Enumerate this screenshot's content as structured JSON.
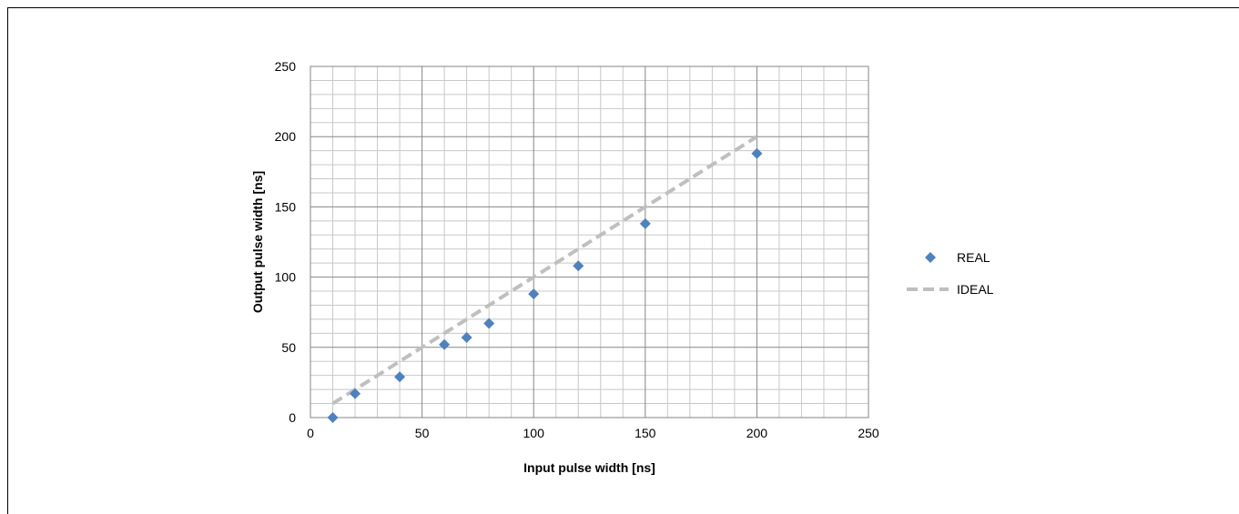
{
  "chart_data": {
    "type": "scatter",
    "title": "",
    "xlabel": "Input pulse width [ns]",
    "ylabel": "Output pulse width [ns]",
    "xlim": [
      0,
      250
    ],
    "ylim": [
      0,
      250
    ],
    "x_ticks": [
      0,
      50,
      100,
      150,
      200,
      250
    ],
    "y_ticks": [
      0,
      50,
      100,
      150,
      200,
      250
    ],
    "grid": true,
    "legend_position": "right",
    "series": [
      {
        "name": "REAL",
        "kind": "scatter",
        "marker": "diamond",
        "color": "#4F81BD",
        "points": [
          [
            10,
            0
          ],
          [
            20,
            17
          ],
          [
            40,
            29
          ],
          [
            60,
            52
          ],
          [
            70,
            57
          ],
          [
            80,
            67
          ],
          [
            100,
            88
          ],
          [
            120,
            108
          ],
          [
            150,
            138
          ],
          [
            200,
            188
          ]
        ]
      },
      {
        "name": "IDEAL",
        "kind": "line",
        "style": "dashed",
        "color": "#BFBFBF",
        "points": [
          [
            10,
            10
          ],
          [
            200,
            200
          ]
        ]
      }
    ]
  }
}
